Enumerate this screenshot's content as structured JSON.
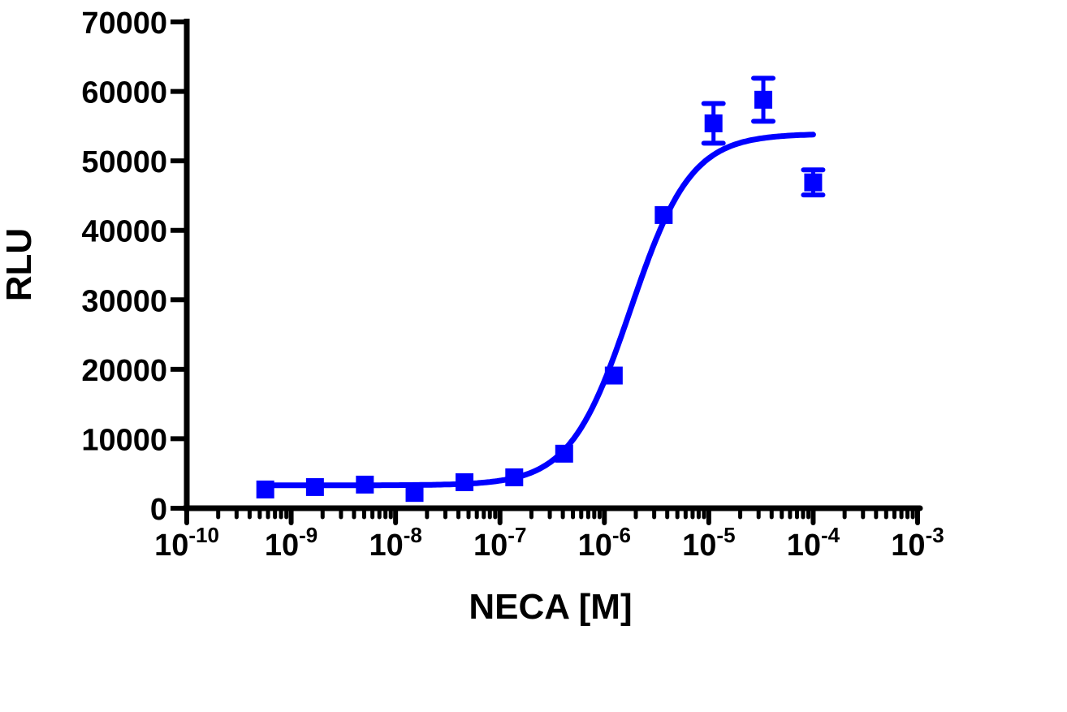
{
  "chart_data": {
    "type": "scatter",
    "title": "",
    "xlabel": "NECA [M]",
    "ylabel": "RLU",
    "x_scale": "log",
    "xlim": [
      1e-10,
      0.001
    ],
    "ylim": [
      0,
      70000
    ],
    "grid": false,
    "x_ticks": [
      {
        "base": "10",
        "exp": "-10",
        "value": 1e-10
      },
      {
        "base": "10",
        "exp": "-9",
        "value": 1e-09
      },
      {
        "base": "10",
        "exp": "-8",
        "value": 1e-08
      },
      {
        "base": "10",
        "exp": "-7",
        "value": 1e-07
      },
      {
        "base": "10",
        "exp": "-6",
        "value": 1e-06
      },
      {
        "base": "10",
        "exp": "-5",
        "value": 1e-05
      },
      {
        "base": "10",
        "exp": "-4",
        "value": 0.0001
      },
      {
        "base": "10",
        "exp": "-3",
        "value": 0.001
      }
    ],
    "y_ticks": [
      "0",
      "10000",
      "20000",
      "30000",
      "40000",
      "50000",
      "60000",
      "70000"
    ],
    "color": "#0000ff",
    "marker": "square",
    "points": [
      {
        "x": 5.65e-10,
        "y": 2700,
        "err": 0
      },
      {
        "x": 1.69e-09,
        "y": 3050,
        "err": 0
      },
      {
        "x": 5.08e-09,
        "y": 3400,
        "err": 0
      },
      {
        "x": 1.52e-08,
        "y": 2200,
        "err": 0
      },
      {
        "x": 4.57e-08,
        "y": 3750,
        "err": 0
      },
      {
        "x": 1.37e-07,
        "y": 4450,
        "err": 0
      },
      {
        "x": 4.12e-07,
        "y": 7850,
        "err": 0
      },
      {
        "x": 1.23e-06,
        "y": 19100,
        "err": 0
      },
      {
        "x": 3.7e-06,
        "y": 42200,
        "err": 0
      },
      {
        "x": 1.11e-05,
        "y": 55400,
        "err": 2850
      },
      {
        "x": 3.33e-05,
        "y": 58800,
        "err": 3100
      },
      {
        "x": 0.0001,
        "y": 46900,
        "err": 1800
      }
    ],
    "fit": {
      "model": "sigmoidal dose-response",
      "bottom": 3300,
      "top": 53900,
      "logEC50": -5.75,
      "hill": 1.5,
      "x_range": [
        5.65e-10,
        0.0001
      ]
    }
  }
}
